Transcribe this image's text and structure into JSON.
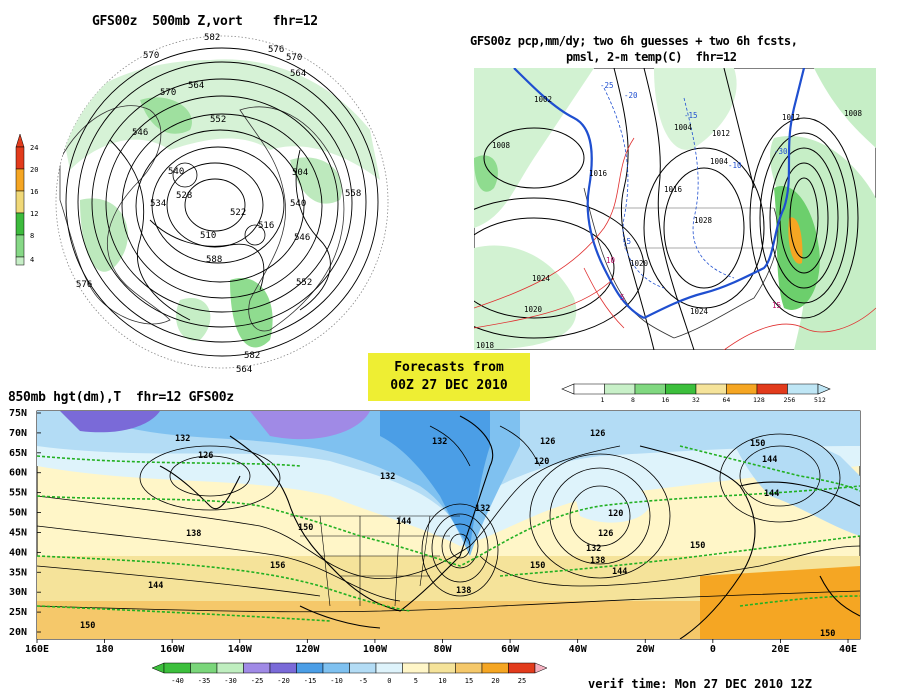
{
  "panel_500mb": {
    "title": "GFS00z  500mb Z,vort    fhr=12",
    "contour_labels": [
      "582",
      "576",
      "570",
      "564",
      "570",
      "564",
      "552",
      "546",
      "540",
      "534",
      "528",
      "522",
      "516",
      "510",
      "504",
      "540",
      "546",
      "552",
      "558",
      "564",
      "576",
      "582",
      "588",
      "570"
    ],
    "colorbar": {
      "levels": [
        "24",
        "20",
        "16",
        "12",
        "8",
        "4"
      ],
      "colors": [
        "#e23b1c",
        "#f5a623",
        "#f0d878",
        "#3dbb3d",
        "#86d886",
        "#c6eec6"
      ]
    }
  },
  "panel_precip": {
    "title_line1": "GFS00z pcp,mm/dy; two 6h guesses + two 6h fcsts,",
    "title_line2": "pmsl, 2-m temp(C)  fhr=12",
    "pressure_labels": [
      "1002",
      "1008",
      "1016",
      "1004",
      "1012",
      "1024",
      "1020",
      "1018",
      "1012",
      "1008",
      "1004",
      "1016",
      "1020",
      "1024",
      "1028"
    ],
    "temp_labels": [
      "-20",
      "-10",
      "-5",
      "-15",
      "-25",
      "-30",
      "10",
      "15",
      "5"
    ],
    "colorbar": {
      "levels": [
        "1",
        "8",
        "16",
        "32",
        "64",
        "128",
        "256",
        "512"
      ],
      "colors": [
        "#ffffff",
        "#c8f0c8",
        "#80d880",
        "#3cbf3c",
        "#f5e39a",
        "#f5a623",
        "#e23b1c",
        "#bfe6f5"
      ]
    }
  },
  "banner": {
    "line1": "Forecasts from",
    "line2": "00Z 27 DEC 2010"
  },
  "panel_850mb": {
    "title": "850mb hgt(dm),T  fhr=12 GFS00z",
    "lat_labels": [
      "75N",
      "70N",
      "65N",
      "60N",
      "55N",
      "50N",
      "45N",
      "40N",
      "35N",
      "30N",
      "25N",
      "20N"
    ],
    "lon_labels": [
      "160E",
      "180",
      "160W",
      "140W",
      "120W",
      "100W",
      "80W",
      "60W",
      "40W",
      "20W",
      "0",
      "20E",
      "40E"
    ],
    "height_labels": [
      "132",
      "126",
      "132",
      "126",
      "120",
      "126",
      "132",
      "144",
      "150",
      "138",
      "144",
      "150",
      "120",
      "126",
      "132",
      "138",
      "144",
      "150",
      "150",
      "144",
      "150",
      "156",
      "132",
      "138",
      "144",
      "150"
    ],
    "colorbar": {
      "levels": [
        "-40",
        "-35",
        "-30",
        "-25",
        "-20",
        "-15",
        "-10",
        "-5",
        "0",
        "5",
        "10",
        "15",
        "20",
        "25"
      ],
      "colors": [
        "#3cbf3c",
        "#7ad67a",
        "#bfeebf",
        "#a08ae6",
        "#7a6ad8",
        "#4b9ee6",
        "#7fc1f0",
        "#b3dcf5",
        "#def3fb",
        "#fff6c8",
        "#f5e39a",
        "#f5c86a",
        "#f5a623",
        "#e23b1c",
        "#f5b0c0"
      ]
    },
    "verif": "verif time: Mon 27 DEC 2010 12Z"
  }
}
